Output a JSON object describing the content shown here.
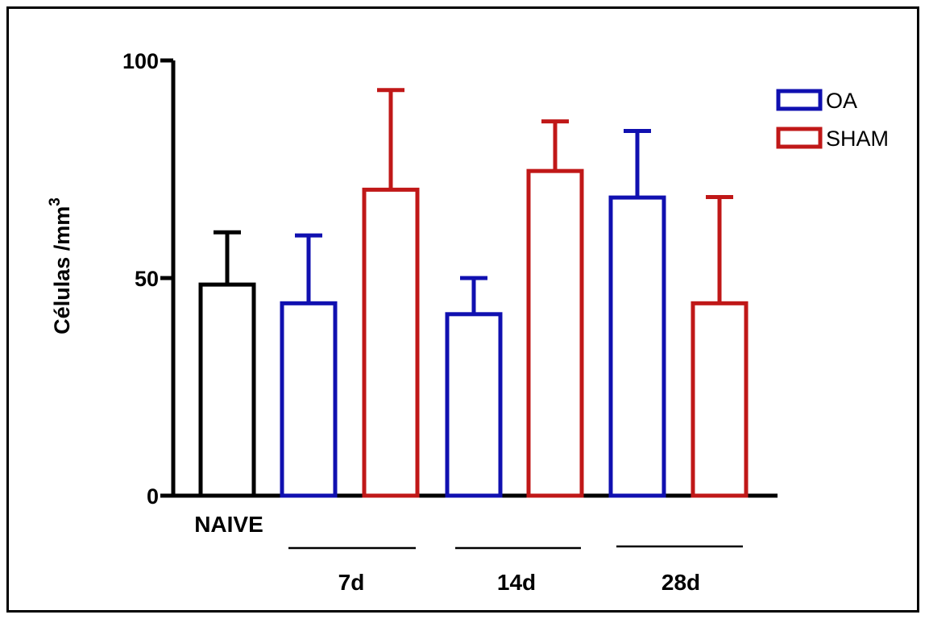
{
  "chart_data": {
    "type": "bar",
    "ylabel": "Células /mm",
    "ylabel_superscript": "3",
    "ylim": [
      0,
      100
    ],
    "yticks": [
      "0",
      "50",
      "100"
    ],
    "error_bars": "upper only",
    "bars": [
      {
        "label": "NAIVE",
        "group": "NAIVE",
        "series": "NAIVE",
        "value": 48.5,
        "err_top": 60.5,
        "color": "#000000"
      },
      {
        "label": "OA 7d",
        "group": "7d",
        "series": "OA",
        "value": 44.2,
        "err_top": 59.8,
        "color": "#1010b0"
      },
      {
        "label": "SHAM 7d",
        "group": "7d",
        "series": "SHAM",
        "value": 70.3,
        "err_top": 93.2,
        "color": "#c01818"
      },
      {
        "label": "OA 14d",
        "group": "14d",
        "series": "OA",
        "value": 41.7,
        "err_top": 50.0,
        "color": "#1010b0"
      },
      {
        "label": "SHAM 14d",
        "group": "14d",
        "series": "SHAM",
        "value": 74.6,
        "err_top": 86.0,
        "color": "#c01818"
      },
      {
        "label": "OA 28d",
        "group": "28d",
        "series": "OA",
        "value": 68.5,
        "err_top": 83.8,
        "color": "#1010b0"
      },
      {
        "label": "SHAM 28d",
        "group": "28d",
        "series": "SHAM",
        "value": 44.2,
        "err_top": 68.6,
        "color": "#c01818"
      }
    ],
    "category_labels": [
      "NAIVE",
      "7d",
      "14d",
      "28d"
    ],
    "legend": {
      "placement": "top-right",
      "entries": [
        {
          "name": "OA",
          "color": "#1010b0"
        },
        {
          "name": "SHAM",
          "color": "#c01818"
        }
      ]
    }
  }
}
